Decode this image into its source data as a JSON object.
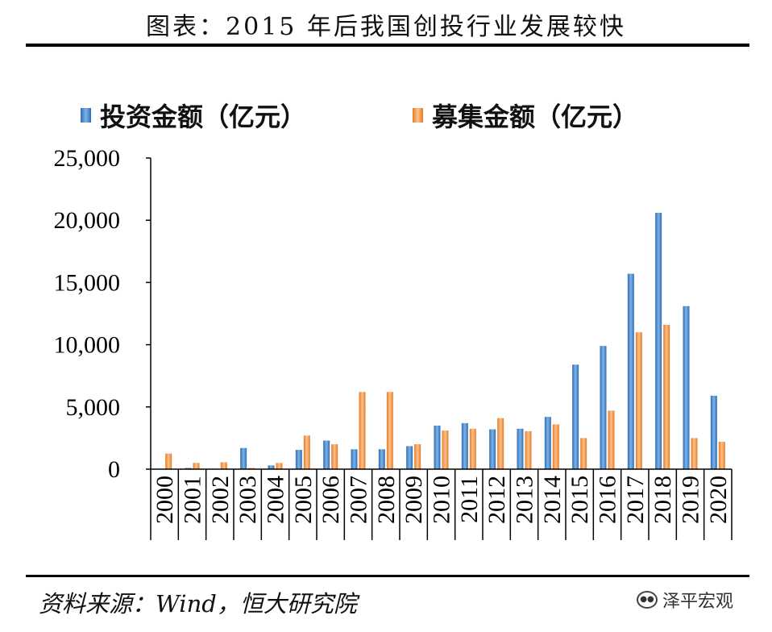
{
  "figure_title": "图表：2015 年后我国创投行业发展较快",
  "source_note": "资料来源：Wind，恒大研究院",
  "watermark": {
    "icon": "wechat-icon",
    "text": "泽平宏观"
  },
  "chart_data": {
    "type": "bar",
    "title": "",
    "xlabel": "",
    "ylabel": "",
    "ylim": [
      0,
      25000
    ],
    "yticks": [
      0,
      5000,
      10000,
      15000,
      20000,
      25000
    ],
    "ytick_labels": [
      "0",
      "5,000",
      "10,000",
      "15,000",
      "20,000",
      "25,000"
    ],
    "grid": false,
    "legend_position": "top",
    "categories": [
      "2000",
      "2001",
      "2002",
      "2003",
      "2004",
      "2005",
      "2006",
      "2007",
      "2008",
      "2009",
      "2010",
      "2011",
      "2012",
      "2013",
      "2014",
      "2015",
      "2016",
      "2017",
      "2018",
      "2019",
      "2020"
    ],
    "series": [
      {
        "name": "投资金额（亿元）",
        "color": "#4f8fd0",
        "values": [
          0,
          100,
          0,
          1700,
          300,
          1550,
          2300,
          1600,
          1600,
          1850,
          3500,
          3700,
          3200,
          3250,
          4200,
          8400,
          9900,
          15700,
          20600,
          13100,
          5900
        ]
      },
      {
        "name": "募集金额（亿元）",
        "color": "#f3994a",
        "values": [
          1250,
          500,
          550,
          100,
          500,
          2700,
          2000,
          6200,
          6200,
          2000,
          3100,
          3250,
          4100,
          3050,
          3600,
          2500,
          4700,
          11000,
          11600,
          2500,
          2200
        ]
      }
    ]
  }
}
